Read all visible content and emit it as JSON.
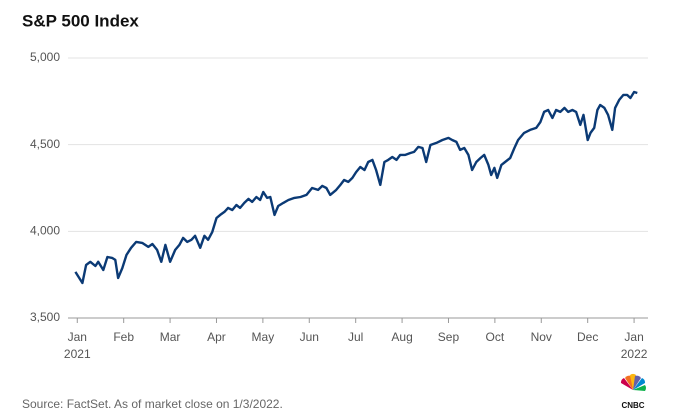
{
  "chart_data": {
    "type": "line",
    "title": "S&P 500 Index",
    "source": "Source: FactSet. As of market close on 1/3/2022.",
    "logo_text": "CNBC",
    "xlim": [
      -0.2,
      12.3
    ],
    "xticks": [
      {
        "value": 0,
        "label": "Jan"
      },
      {
        "value": 1,
        "label": "Feb"
      },
      {
        "value": 2,
        "label": "Mar"
      },
      {
        "value": 3,
        "label": "Apr"
      },
      {
        "value": 4,
        "label": "May"
      },
      {
        "value": 5,
        "label": "Jun"
      },
      {
        "value": 6,
        "label": "Jul"
      },
      {
        "value": 7,
        "label": "Aug"
      },
      {
        "value": 8,
        "label": "Sep"
      },
      {
        "value": 9,
        "label": "Oct"
      },
      {
        "value": 10,
        "label": "Nov"
      },
      {
        "value": 11,
        "label": "Dec"
      },
      {
        "value": 12,
        "label": "Jan"
      }
    ],
    "x_year_labels": [
      {
        "value": 0,
        "label": "2021"
      },
      {
        "value": 12,
        "label": "2022"
      }
    ],
    "ylim": [
      3500,
      5000
    ],
    "yticks": [
      {
        "value": 3500,
        "label": "3,500"
      },
      {
        "value": 4000,
        "label": "4,000"
      },
      {
        "value": 4500,
        "label": "4,500"
      },
      {
        "value": 5000,
        "label": "5,000"
      }
    ],
    "grid": true,
    "color": "#0b3a75",
    "x": [
      -0.04,
      0.11,
      0.19,
      0.28,
      0.39,
      0.45,
      0.56,
      0.65,
      0.75,
      0.82,
      0.88,
      0.97,
      1.06,
      1.16,
      1.27,
      1.4,
      1.53,
      1.62,
      1.72,
      1.81,
      1.9,
      2.0,
      2.11,
      2.2,
      2.28,
      2.37,
      2.46,
      2.54,
      2.65,
      2.74,
      2.82,
      2.91,
      3.0,
      3.08,
      3.17,
      3.25,
      3.34,
      3.43,
      3.51,
      3.6,
      3.69,
      3.77,
      3.86,
      3.94,
      4.01,
      4.09,
      4.16,
      4.25,
      4.33,
      4.44,
      4.55,
      4.68,
      4.81,
      4.94,
      5.06,
      5.19,
      5.28,
      5.37,
      5.45,
      5.58,
      5.67,
      5.75,
      5.84,
      5.93,
      6.01,
      6.1,
      6.19,
      6.27,
      6.36,
      6.44,
      6.53,
      6.62,
      6.7,
      6.79,
      6.88,
      6.96,
      7.07,
      7.18,
      7.26,
      7.35,
      7.44,
      7.52,
      7.61,
      7.74,
      7.87,
      8.0,
      8.08,
      8.17,
      8.25,
      8.34,
      8.43,
      8.51,
      8.6,
      8.69,
      8.77,
      8.86,
      8.92,
      8.99,
      9.05,
      9.14,
      9.22,
      9.33,
      9.42,
      9.5,
      9.63,
      9.76,
      9.89,
      9.98,
      10.06,
      10.15,
      10.24,
      10.32,
      10.41,
      10.5,
      10.58,
      10.67,
      10.75,
      10.84,
      10.91,
      11.0,
      11.06,
      11.14,
      11.21,
      11.27,
      11.36,
      11.44,
      11.53,
      11.59,
      11.68,
      11.77,
      11.85,
      11.92,
      12.0,
      12.07
    ],
    "values": [
      3766,
      3702,
      3806,
      3824,
      3800,
      3824,
      3777,
      3852,
      3847,
      3835,
      3731,
      3788,
      3864,
      3905,
      3939,
      3933,
      3910,
      3927,
      3893,
      3824,
      3922,
      3824,
      3893,
      3922,
      3962,
      3939,
      3951,
      3974,
      3905,
      3974,
      3951,
      3997,
      4077,
      4095,
      4112,
      4135,
      4123,
      4152,
      4135,
      4164,
      4187,
      4170,
      4198,
      4181,
      4227,
      4193,
      4198,
      4095,
      4146,
      4164,
      4181,
      4193,
      4198,
      4210,
      4250,
      4239,
      4262,
      4250,
      4210,
      4239,
      4268,
      4296,
      4285,
      4308,
      4342,
      4371,
      4354,
      4400,
      4412,
      4354,
      4268,
      4400,
      4412,
      4429,
      4412,
      4441,
      4441,
      4452,
      4458,
      4487,
      4481,
      4400,
      4498,
      4510,
      4527,
      4539,
      4527,
      4516,
      4470,
      4481,
      4441,
      4354,
      4400,
      4423,
      4441,
      4383,
      4325,
      4366,
      4308,
      4383,
      4400,
      4423,
      4481,
      4527,
      4568,
      4585,
      4597,
      4631,
      4689,
      4700,
      4654,
      4700,
      4689,
      4712,
      4689,
      4700,
      4689,
      4614,
      4672,
      4527,
      4568,
      4597,
      4700,
      4729,
      4712,
      4672,
      4585,
      4712,
      4758,
      4787,
      4787,
      4769,
      4804,
      4798
    ]
  }
}
